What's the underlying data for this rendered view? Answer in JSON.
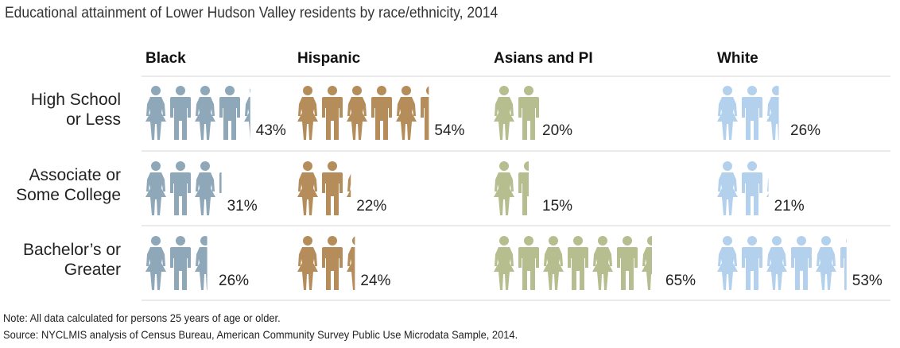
{
  "title": "Educational attainment of Lower Hudson Valley residents by race/ethnicity, 2014",
  "notes": {
    "note": "Note: All data calculated for persons 25 years of age or older.",
    "source": "Source: NYCLMIS analysis of Census Bureau, American Community Survey Public Use Microdata Sample, 2014."
  },
  "chart_data": {
    "type": "pictograph",
    "unit": "one figure = 10%",
    "groups": [
      "Black",
      "Hispanic",
      "Asians and PI",
      "White"
    ],
    "group_colors": [
      "#8ea7b9",
      "#b58d5b",
      "#b6bd8f",
      "#b3d1ec"
    ],
    "categories": [
      [
        "High School",
        "or Less"
      ],
      [
        "Associate or",
        "Some College"
      ],
      [
        "Bachelor’s or",
        "Greater"
      ]
    ],
    "series": [
      {
        "name": "Black",
        "values": [
          43,
          31,
          26
        ]
      },
      {
        "name": "Hispanic",
        "values": [
          54,
          22,
          24
        ]
      },
      {
        "name": "Asians and PI",
        "values": [
          20,
          15,
          65
        ]
      },
      {
        "name": "White",
        "values": [
          26,
          21,
          53
        ]
      }
    ]
  }
}
